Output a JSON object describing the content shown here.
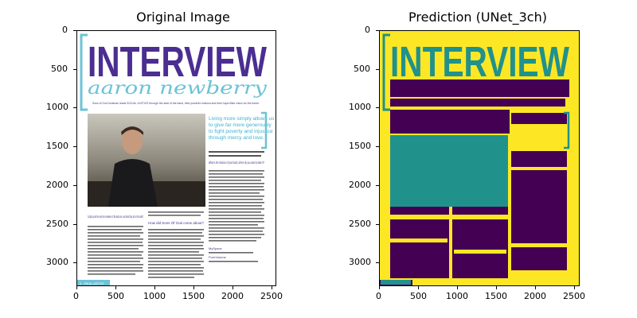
{
  "panels": [
    {
      "title": "Original Image",
      "x_ticks": [
        "0",
        "500",
        "1000",
        "1500",
        "2000",
        "2500"
      ],
      "y_ticks": [
        "0",
        "500",
        "1000",
        "1500",
        "2000",
        "2500",
        "3000"
      ],
      "magazine": {
        "heading": "INTERVIEW",
        "name_script": "aaron newberry",
        "intro_line": "Sons of God frontman leads SOCIAL JUSTICE through the start of the band, their powerful mission and their hope-filled vision for the future.",
        "pull_quote_lines": [
          "Living more simply allows us",
          "to give far more generously",
          "to fight poverty and injustice",
          "through mercy and love."
        ],
        "q1": "Could you tell me why the members of the band are, and what they do in the band?",
        "q2": "How did Sons Of God come about?",
        "q3": "What is the mission of your band, where do you want to take it?",
        "footer_tab": "4 · REAL ARTIST",
        "myspace_label": "MySpace",
        "pure_volume_label": "PureVolume"
      }
    },
    {
      "title": "Prediction (UNet_3ch)",
      "x_ticks": [
        "0",
        "500",
        "1000",
        "1500",
        "2000",
        "2500"
      ],
      "y_ticks": [
        "0",
        "500",
        "1000",
        "1500",
        "2000",
        "2500",
        "3000"
      ],
      "heading": "INTERVIEW",
      "colors": {
        "background": "#fde725",
        "text_class": "#21918c",
        "noise_class": "#440154"
      }
    }
  ]
}
